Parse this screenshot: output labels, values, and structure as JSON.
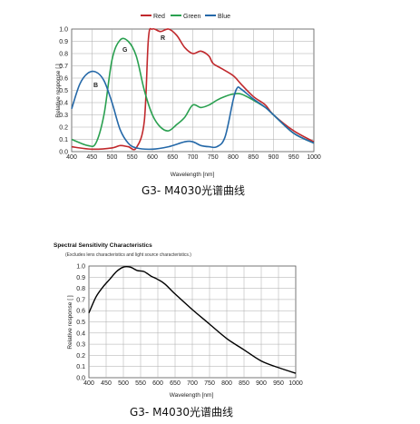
{
  "chart_data": [
    {
      "type": "line",
      "title": "",
      "legend": {
        "placement": "top",
        "entries": [
          "Red",
          "Green",
          "Blue"
        ]
      },
      "xlabel": "Wavelength [nm]",
      "ylabel": "Relative response [ ]",
      "xlim": [
        400,
        1000
      ],
      "ylim": [
        0,
        1.0
      ],
      "xticks": [
        "400",
        "450",
        "500",
        "550",
        "600",
        "650",
        "700",
        "750",
        "800",
        "850",
        "900",
        "950",
        "1000"
      ],
      "yticks": [
        "0.0",
        "0.1",
        "0.2",
        "0.3",
        "0.4",
        "0.5",
        "0.6",
        "0.7",
        "0.8",
        "0.9",
        "1.0"
      ],
      "grid": true,
      "series_labels": {
        "Red": "R",
        "Green": "G",
        "Blue": "B"
      },
      "series": [
        {
          "name": "Red",
          "color": "#c0282c",
          "x": [
            400,
            450,
            500,
            520,
            540,
            560,
            580,
            590,
            600,
            620,
            640,
            660,
            680,
            700,
            720,
            740,
            750,
            770,
            800,
            820,
            850,
            880,
            900,
            950,
            1000
          ],
          "y": [
            0.04,
            0.02,
            0.03,
            0.05,
            0.04,
            0.03,
            0.25,
            0.92,
            1.0,
            0.98,
            1.0,
            0.95,
            0.85,
            0.8,
            0.82,
            0.78,
            0.72,
            0.68,
            0.62,
            0.55,
            0.45,
            0.38,
            0.3,
            0.17,
            0.08
          ]
        },
        {
          "name": "Green",
          "color": "#2aa050",
          "x": [
            400,
            440,
            460,
            480,
            500,
            520,
            540,
            560,
            580,
            600,
            620,
            640,
            660,
            680,
            700,
            720,
            740,
            760,
            780,
            800,
            820,
            850,
            880,
            900,
            950,
            1000
          ],
          "y": [
            0.1,
            0.05,
            0.07,
            0.3,
            0.75,
            0.91,
            0.9,
            0.78,
            0.5,
            0.3,
            0.2,
            0.17,
            0.22,
            0.28,
            0.38,
            0.36,
            0.38,
            0.42,
            0.45,
            0.47,
            0.47,
            0.42,
            0.36,
            0.3,
            0.15,
            0.07
          ]
        },
        {
          "name": "Blue",
          "color": "#2468a8",
          "x": [
            400,
            420,
            440,
            460,
            480,
            500,
            520,
            540,
            560,
            600,
            640,
            680,
            700,
            720,
            740,
            760,
            780,
            800,
            810,
            820,
            850,
            880,
            900,
            950,
            1000
          ],
          "y": [
            0.35,
            0.55,
            0.64,
            0.65,
            0.58,
            0.4,
            0.18,
            0.07,
            0.03,
            0.02,
            0.04,
            0.08,
            0.08,
            0.05,
            0.04,
            0.04,
            0.12,
            0.42,
            0.52,
            0.51,
            0.43,
            0.36,
            0.3,
            0.15,
            0.07
          ]
        }
      ],
      "caption": "G3- M4030光谱曲线"
    },
    {
      "type": "line",
      "title": "Spectral Sensitivity Characteristics",
      "subtitle": "(Excludes lens characteristics and light source characteristics.)",
      "xlabel": "Wavelength [nm]",
      "ylabel": "Relative response [ ]",
      "xlim": [
        400,
        1000
      ],
      "ylim": [
        0,
        1.0
      ],
      "xticks": [
        "400",
        "450",
        "500",
        "550",
        "600",
        "650",
        "700",
        "750",
        "800",
        "850",
        "900",
        "950",
        "1000"
      ],
      "yticks": [
        "0.0",
        "0.1",
        "0.2",
        "0.3",
        "0.4",
        "0.5",
        "0.6",
        "0.7",
        "0.8",
        "0.9",
        "1.0"
      ],
      "grid": true,
      "series": [
        {
          "color": "#000000",
          "x": [
            400,
            420,
            440,
            460,
            480,
            500,
            520,
            540,
            560,
            580,
            600,
            620,
            650,
            700,
            750,
            800,
            850,
            900,
            950,
            1000
          ],
          "y": [
            0.58,
            0.72,
            0.81,
            0.88,
            0.95,
            0.99,
            0.99,
            0.96,
            0.95,
            0.91,
            0.88,
            0.84,
            0.75,
            0.61,
            0.48,
            0.35,
            0.25,
            0.15,
            0.09,
            0.04
          ]
        }
      ],
      "caption": "G3- M4030光谱曲线"
    }
  ]
}
